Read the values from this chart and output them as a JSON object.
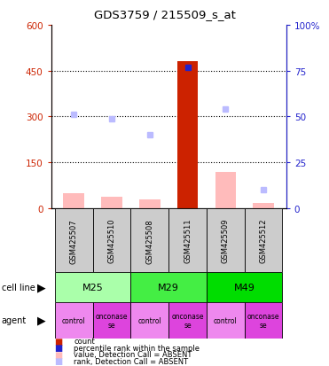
{
  "title": "GDS3759 / 215509_s_at",
  "samples": [
    "GSM425507",
    "GSM425510",
    "GSM425508",
    "GSM425511",
    "GSM425509",
    "GSM425512"
  ],
  "count_values": [
    null,
    null,
    null,
    480,
    null,
    null
  ],
  "count_absent_values": [
    50,
    38,
    28,
    null,
    118,
    18
  ],
  "rank_values": [
    null,
    null,
    null,
    77,
    null,
    null
  ],
  "rank_absent_values": [
    51,
    49,
    40,
    null,
    54,
    10
  ],
  "ylim_left": [
    0,
    600
  ],
  "ylim_right": [
    0,
    100
  ],
  "yticks_left": [
    0,
    150,
    300,
    450,
    600
  ],
  "yticks_right": [
    0,
    25,
    50,
    75,
    100
  ],
  "cell_lines": [
    {
      "label": "M25",
      "cols": [
        0,
        1
      ],
      "color": "#aaffaa"
    },
    {
      "label": "M29",
      "cols": [
        2,
        3
      ],
      "color": "#44ee44"
    },
    {
      "label": "M49",
      "cols": [
        4,
        5
      ],
      "color": "#00dd00"
    }
  ],
  "agents": [
    "control",
    "onconase\nse",
    "control",
    "onconase\nse",
    "control",
    "onconase\nse"
  ],
  "agent_control_color": "#ee88ee",
  "agent_onconase_color": "#dd44dd",
  "color_count": "#cc2200",
  "color_rank": "#2222cc",
  "color_count_absent": "#ffbbbb",
  "color_rank_absent": "#bbbbff",
  "bar_width": 0.55,
  "left_ylabel_color": "#cc2200",
  "right_ylabel_color": "#2222cc",
  "sample_box_color": "#cccccc"
}
